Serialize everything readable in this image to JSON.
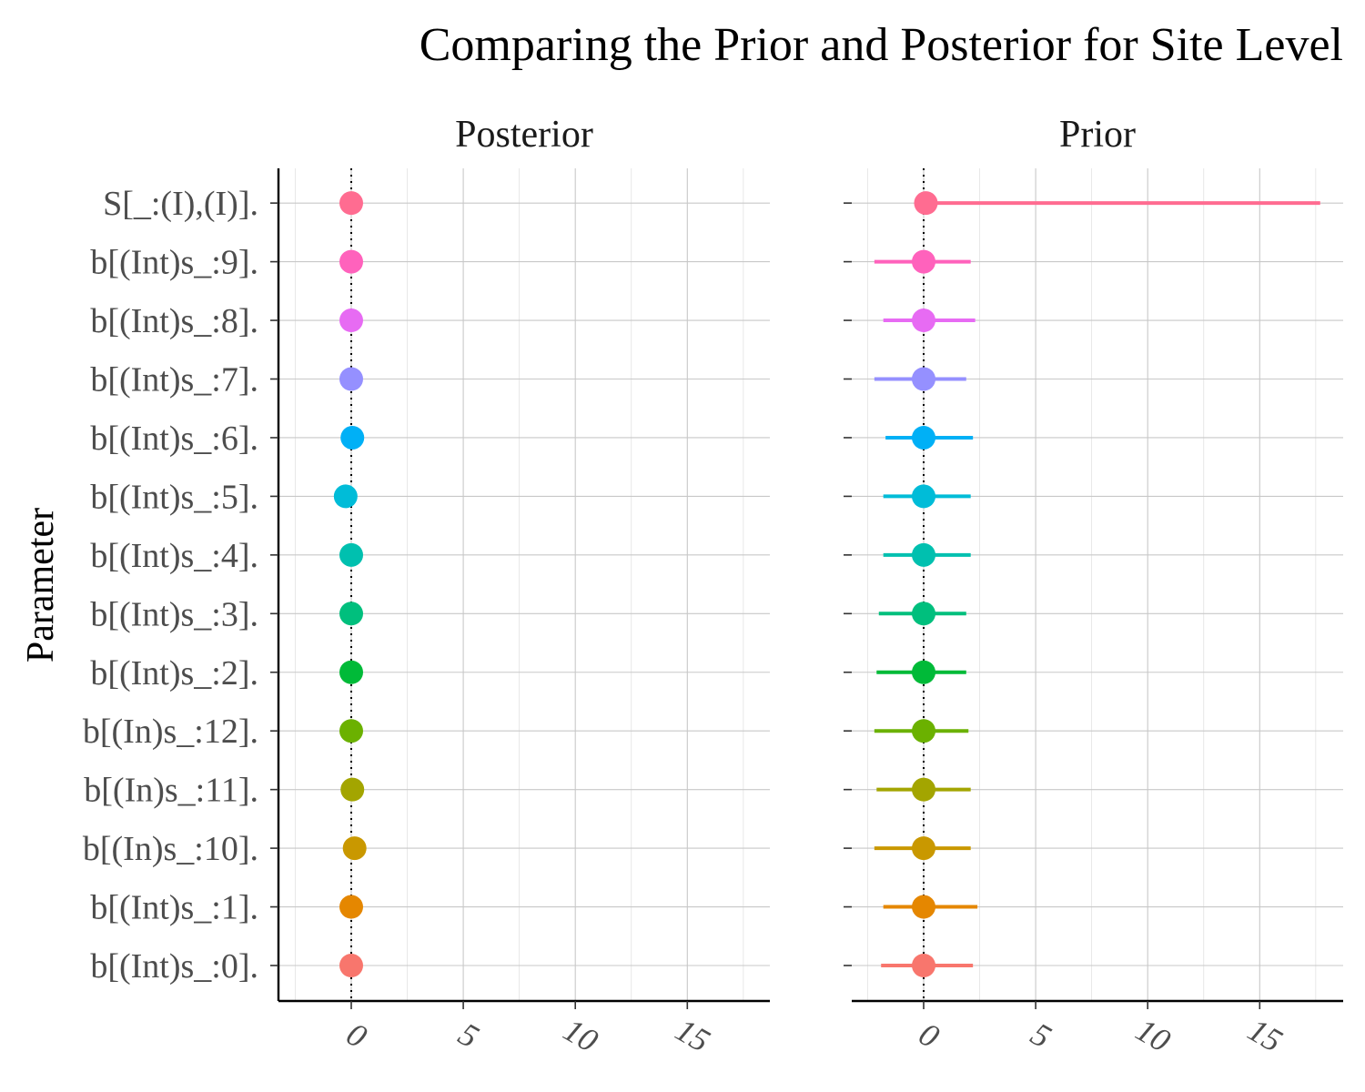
{
  "chart_data": {
    "type": "scatter",
    "title": "Comparing the Prior and Posterior for Site Level",
    "ylabel": "Parameter",
    "xlabel": "",
    "xlim": [
      -3.2,
      18.7
    ],
    "x_ticks": [
      0,
      5,
      10,
      15
    ],
    "reference_line": 0,
    "grid": true,
    "legend": "none",
    "categories": [
      "b[(Int)s_:0].",
      "b[(Int)s_:1].",
      "b[(In)s_:10].",
      "b[(In)s_:11].",
      "b[(In)s_:12].",
      "b[(Int)s_:2].",
      "b[(Int)s_:3].",
      "b[(Int)s_:4].",
      "b[(Int)s_:5].",
      "b[(Int)s_:6].",
      "b[(Int)s_:7].",
      "b[(Int)s_:8].",
      "b[(Int)s_:9].",
      "S[_:(I),(I)]."
    ],
    "colors": [
      "#F8766D",
      "#E58700",
      "#C99800",
      "#A3A500",
      "#6BB100",
      "#00BA38",
      "#00BF7D",
      "#00C0AF",
      "#00BCD8",
      "#00B0F6",
      "#9590FF",
      "#E76BF3",
      "#FF62BC",
      "#FF6C91"
    ],
    "panels": [
      {
        "name": "Posterior",
        "estimate": [
          0.0,
          0.0,
          0.15,
          0.05,
          0.0,
          0.0,
          0.0,
          0.0,
          -0.25,
          0.05,
          0.0,
          0.0,
          0.0,
          0.0
        ],
        "lower": [
          0.0,
          0.0,
          0.15,
          0.05,
          0.0,
          0.0,
          0.0,
          0.0,
          -0.25,
          0.05,
          0.0,
          0.0,
          0.0,
          0.0
        ],
        "upper": [
          0.0,
          0.0,
          0.15,
          0.05,
          0.0,
          0.0,
          0.0,
          0.0,
          -0.25,
          0.05,
          0.0,
          0.0,
          0.0,
          0.0
        ]
      },
      {
        "name": "Prior",
        "estimate": [
          0.0,
          0.0,
          0.0,
          0.0,
          0.0,
          0.0,
          0.0,
          0.0,
          0.0,
          0.0,
          0.0,
          0.0,
          0.0,
          0.1
        ],
        "lower": [
          -1.9,
          -1.8,
          -2.2,
          -2.1,
          -2.2,
          -2.1,
          -2.0,
          -1.8,
          -1.8,
          -1.7,
          -2.2,
          -1.8,
          -2.2,
          0.1
        ],
        "upper": [
          2.2,
          2.4,
          2.1,
          2.1,
          2.0,
          1.9,
          1.9,
          2.1,
          2.1,
          2.2,
          1.9,
          2.3,
          2.1,
          17.7
        ]
      }
    ]
  }
}
